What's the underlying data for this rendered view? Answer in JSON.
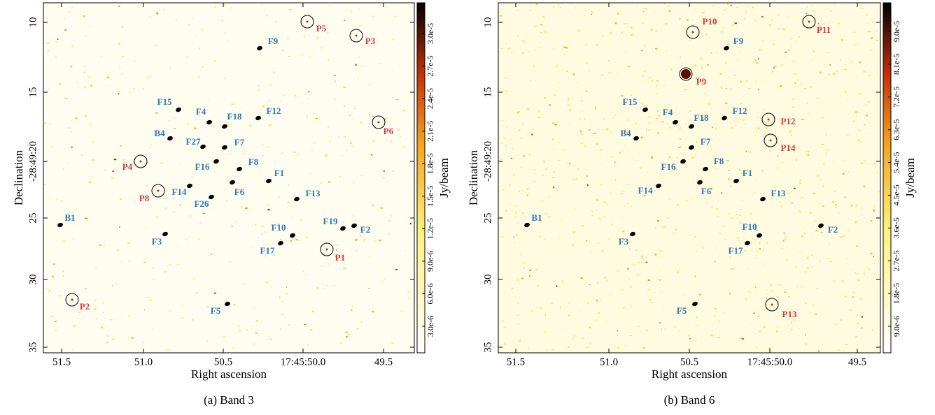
{
  "panels": [
    {
      "caption": "(a) Band 3",
      "x_axis_label": "Right ascension",
      "y_axis_label": "Declination",
      "colorbar_label": "Jy/beam",
      "x_ticks": [
        "51.5",
        "51.0",
        "50.5",
        "17:45:50.0",
        "49.5"
      ],
      "y_ticks": [
        "10",
        "15",
        "-28:49:20",
        "25",
        "30",
        "35"
      ],
      "colorbar_ticks": [
        "3.0e-6",
        "6.0e-6",
        "9.0e-6",
        "1.2e-5",
        "1.5e-5",
        "1.8e-5",
        "2.1e-5",
        "2.4e-5",
        "2.7e-5",
        "3.0e-5"
      ],
      "sources": [
        "F9",
        "F15",
        "F4",
        "F18",
        "F12",
        "B4",
        "F27",
        "F7",
        "F16",
        "F8",
        "F1",
        "P4",
        "F14",
        "F6",
        "F13",
        "P8",
        "F26",
        "B1",
        "F19",
        "F2",
        "F10",
        "F3",
        "F17",
        "P1",
        "P2",
        "F5",
        "P5",
        "P3",
        "P6"
      ]
    },
    {
      "caption": "(b) Band 6",
      "x_axis_label": "Right ascension",
      "y_axis_label": "Declination",
      "colorbar_label": "Jy/beam",
      "x_ticks": [
        "51.5",
        "51.0",
        "50.5",
        "17:45:50.0",
        "49.5"
      ],
      "y_ticks": [
        "10",
        "15",
        "-28:49:20",
        "25",
        "30",
        "35"
      ],
      "colorbar_ticks": [
        "9.0e-6",
        "1.8e-5",
        "2.7e-5",
        "3.6e-5",
        "4.5e-5",
        "5.4e-5",
        "6.3e-5",
        "7.2e-5",
        "8.1e-5",
        "9.0e-5"
      ],
      "sources": [
        "P10",
        "F9",
        "P11",
        "P9",
        "F15",
        "F4",
        "F18",
        "F12",
        "P12",
        "B4",
        "F7",
        "P14",
        "F16",
        "F8",
        "F1",
        "F14",
        "F6",
        "F13",
        "B1",
        "F2",
        "F10",
        "F3",
        "F17",
        "F5",
        "P13"
      ]
    }
  ]
}
